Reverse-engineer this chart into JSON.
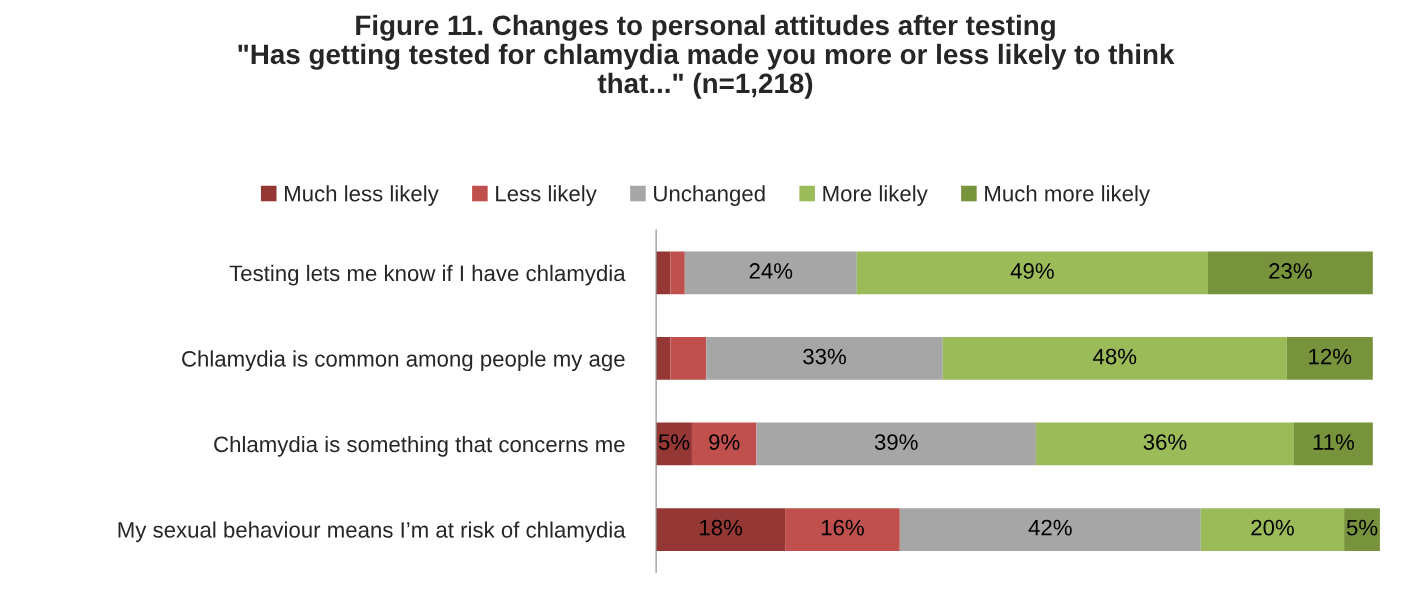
{
  "chart_data": {
    "type": "bar",
    "orientation": "horizontal",
    "stacked": true,
    "title": "Figure 11. Changes to personal attitudes after testing\n\"Has getting tested for chlamydia made you more or less likely to think\nthat...\" (n=1,218)",
    "categories": [
      "Testing lets me know if I have chlamydia",
      "Chlamydia is common among people my age",
      "Chlamydia is something that concerns me",
      "My sexual behaviour means I’m at risk of chlamydia"
    ],
    "series": [
      {
        "name": "Much less likely",
        "color": "#953735",
        "values": [
          2,
          2,
          5,
          18
        ],
        "value_labels": [
          null,
          null,
          "5%",
          "18%"
        ]
      },
      {
        "name": "Less likely",
        "color": "#c0504d",
        "values": [
          2,
          5,
          9,
          16
        ],
        "value_labels": [
          null,
          null,
          "9%",
          "16%"
        ]
      },
      {
        "name": "Unchanged",
        "color": "#a6a6a6",
        "values": [
          24,
          33,
          39,
          42
        ],
        "value_labels": [
          "24%",
          "33%",
          "39%",
          "42%"
        ]
      },
      {
        "name": "More likely",
        "color": "#9bbb59",
        "values": [
          49,
          48,
          36,
          20
        ],
        "value_labels": [
          "49%",
          "48%",
          "36%",
          "20%"
        ]
      },
      {
        "name": "Much more likely",
        "color": "#77933c",
        "values": [
          23,
          12,
          11,
          5
        ],
        "value_labels": [
          "23%",
          "12%",
          "11%",
          "5%"
        ]
      }
    ],
    "legend": "top",
    "grid": false,
    "tick_labels": "y"
  }
}
